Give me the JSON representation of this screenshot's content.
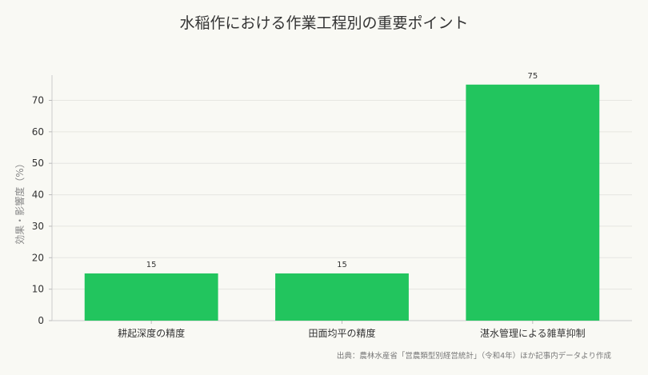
{
  "chart_data": {
    "type": "bar",
    "title": "水稲作における作業工程別の重要ポイント",
    "ylabel": "効果・影響度（%）",
    "xlabel": "",
    "categories": [
      "耕起深度の精度",
      "田面均平の精度",
      "湛水管理による雑草抑制"
    ],
    "values": [
      15,
      15,
      75
    ],
    "data_labels": [
      "15",
      "15",
      "75"
    ],
    "ylim": [
      0,
      78
    ],
    "yticks": [
      0,
      10,
      20,
      30,
      40,
      50,
      60,
      70
    ],
    "grid": true,
    "legend": "none",
    "bar_color": "#22c55e",
    "source_note": "出典：農林水産省「営農類型別経営統計」（令和4年）ほか記事内データより作成"
  }
}
